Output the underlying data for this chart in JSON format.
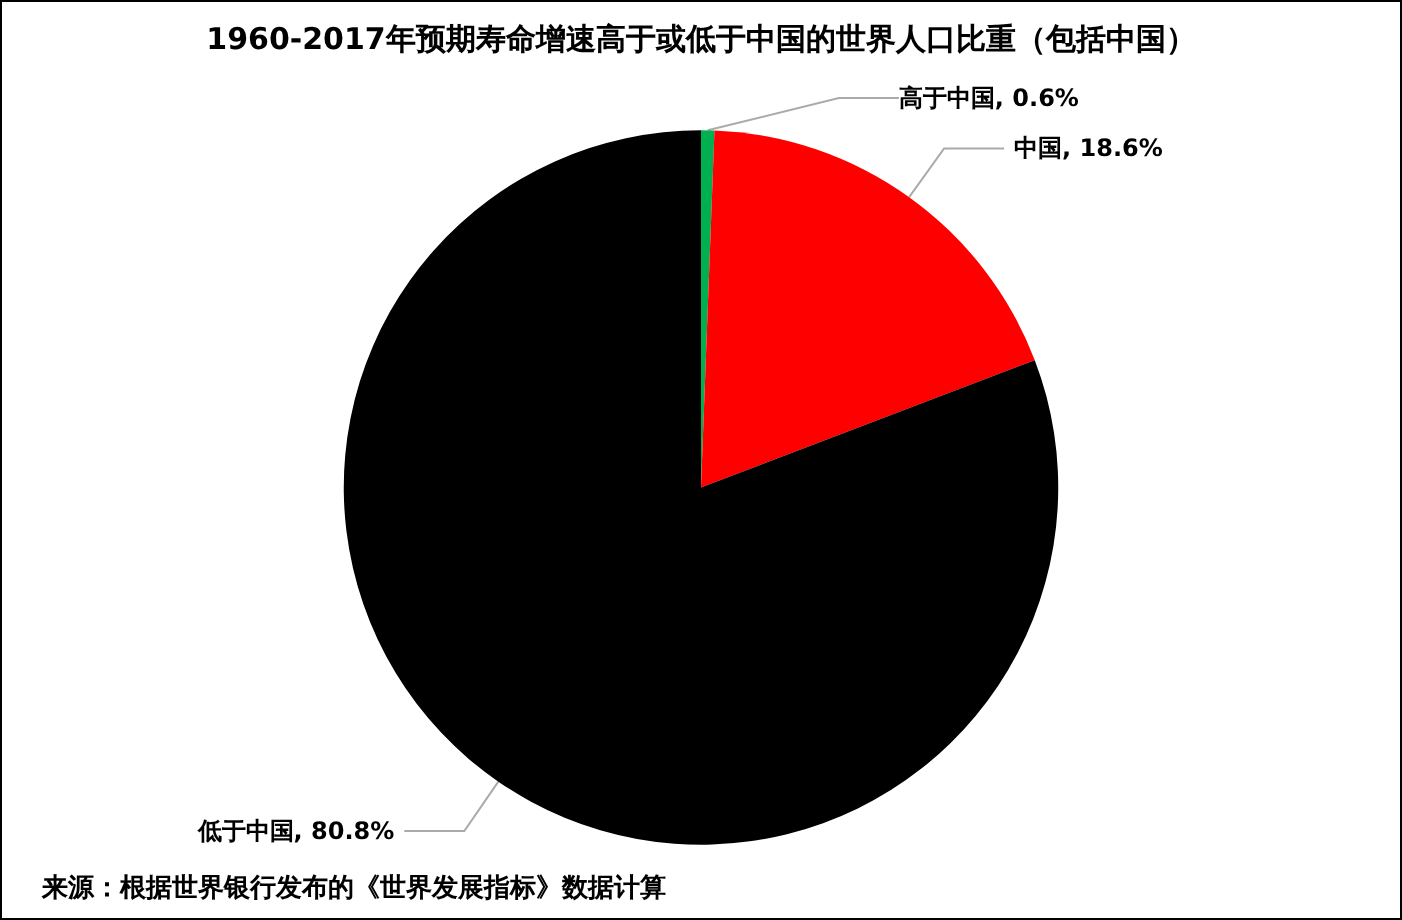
{
  "chart_data": {
    "type": "pie",
    "title": "1960-2017年预期寿命增速高于或低于中国的世界人口比重（包括中国）",
    "categories": [
      "高于中国",
      "中国",
      "低于中国"
    ],
    "values": [
      0.6,
      18.6,
      80.8
    ],
    "value_labels": [
      "0.6%",
      "18.6%",
      "80.8%"
    ],
    "colors": [
      "#00b050",
      "#ff0000",
      "#000000"
    ],
    "annotations": [
      "来源：根据世界银行发布的《世界发展指标》数据计算"
    ]
  }
}
